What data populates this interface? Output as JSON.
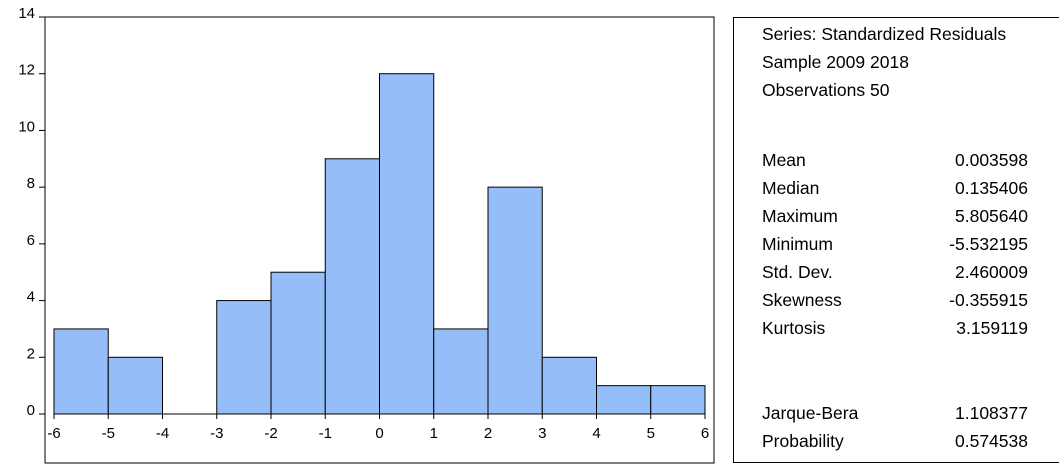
{
  "chart_data": {
    "type": "bar",
    "subtype": "histogram",
    "bins": [
      {
        "from": -6,
        "to": -5,
        "count": 3
      },
      {
        "from": -5,
        "to": -4,
        "count": 2
      },
      {
        "from": -4,
        "to": -3,
        "count": 0
      },
      {
        "from": -3,
        "to": -2,
        "count": 4
      },
      {
        "from": -2,
        "to": -1,
        "count": 5
      },
      {
        "from": -1,
        "to": 0,
        "count": 9
      },
      {
        "from": 0,
        "to": 1,
        "count": 12
      },
      {
        "from": 1,
        "to": 2,
        "count": 3
      },
      {
        "from": 2,
        "to": 3,
        "count": 8
      },
      {
        "from": 3,
        "to": 4,
        "count": 2
      },
      {
        "from": 4,
        "to": 5,
        "count": 1
      },
      {
        "from": 5,
        "to": 6,
        "count": 1
      }
    ],
    "xlim": [
      -6,
      6
    ],
    "ylim": [
      0,
      14
    ],
    "x_ticks": [
      "-6",
      "-5",
      "-4",
      "-3",
      "-2",
      "-1",
      "0",
      "1",
      "2",
      "3",
      "4",
      "5",
      "6"
    ],
    "y_ticks": [
      "0",
      "2",
      "4",
      "6",
      "8",
      "10",
      "12",
      "14"
    ],
    "grid": false,
    "bar_color": "#95bdf7",
    "edge_color": "#000000",
    "title": "",
    "xlabel": "",
    "ylabel": ""
  },
  "stats": {
    "series": "Series: Standardized Residuals",
    "sample": "Sample 2009 2018",
    "observations": "Observations 50",
    "rows": [
      {
        "label": "Mean",
        "value": "0.003598"
      },
      {
        "label": "Median",
        "value": "0.135406"
      },
      {
        "label": "Maximum",
        "value": "5.805640"
      },
      {
        "label": "Minimum",
        "value": "-5.532195"
      },
      {
        "label": "Std. Dev.",
        "value": "2.460009"
      },
      {
        "label": "Skewness",
        "value": "-0.355915"
      },
      {
        "label": "Kurtosis",
        "value": "3.159119"
      }
    ],
    "tests": [
      {
        "label": "Jarque-Bera",
        "value": "1.108377"
      },
      {
        "label": "Probability",
        "value": "0.574538"
      }
    ]
  }
}
